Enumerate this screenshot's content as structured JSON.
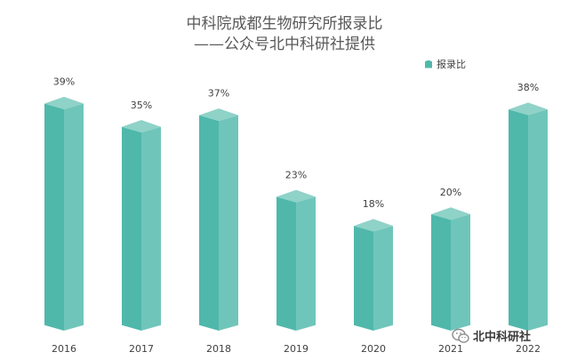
{
  "chart_data": {
    "type": "bar",
    "title": "中科院成都生物研究所报录比",
    "subtitle": "——公众号北中科研社提供",
    "categories": [
      "2016",
      "2017",
      "2018",
      "2019",
      "2020",
      "2021",
      "2022"
    ],
    "series": [
      {
        "name": "报录比",
        "values": [
          39,
          35,
          37,
          23,
          18,
          20,
          38
        ],
        "labels": [
          "39%",
          "35%",
          "37%",
          "23%",
          "18%",
          "20%",
          "38%"
        ]
      }
    ],
    "unit": "%",
    "ylim": [
      0,
      45
    ],
    "grid": false,
    "legend_position": "top-right",
    "style": "3d-column"
  },
  "colors": {
    "front": "#4fb8ab",
    "side": "#70c5ba",
    "top": "#8fd2c8",
    "text": "#404040"
  },
  "watermark": {
    "icon": "wechat-icon",
    "text": "北中科研社"
  }
}
